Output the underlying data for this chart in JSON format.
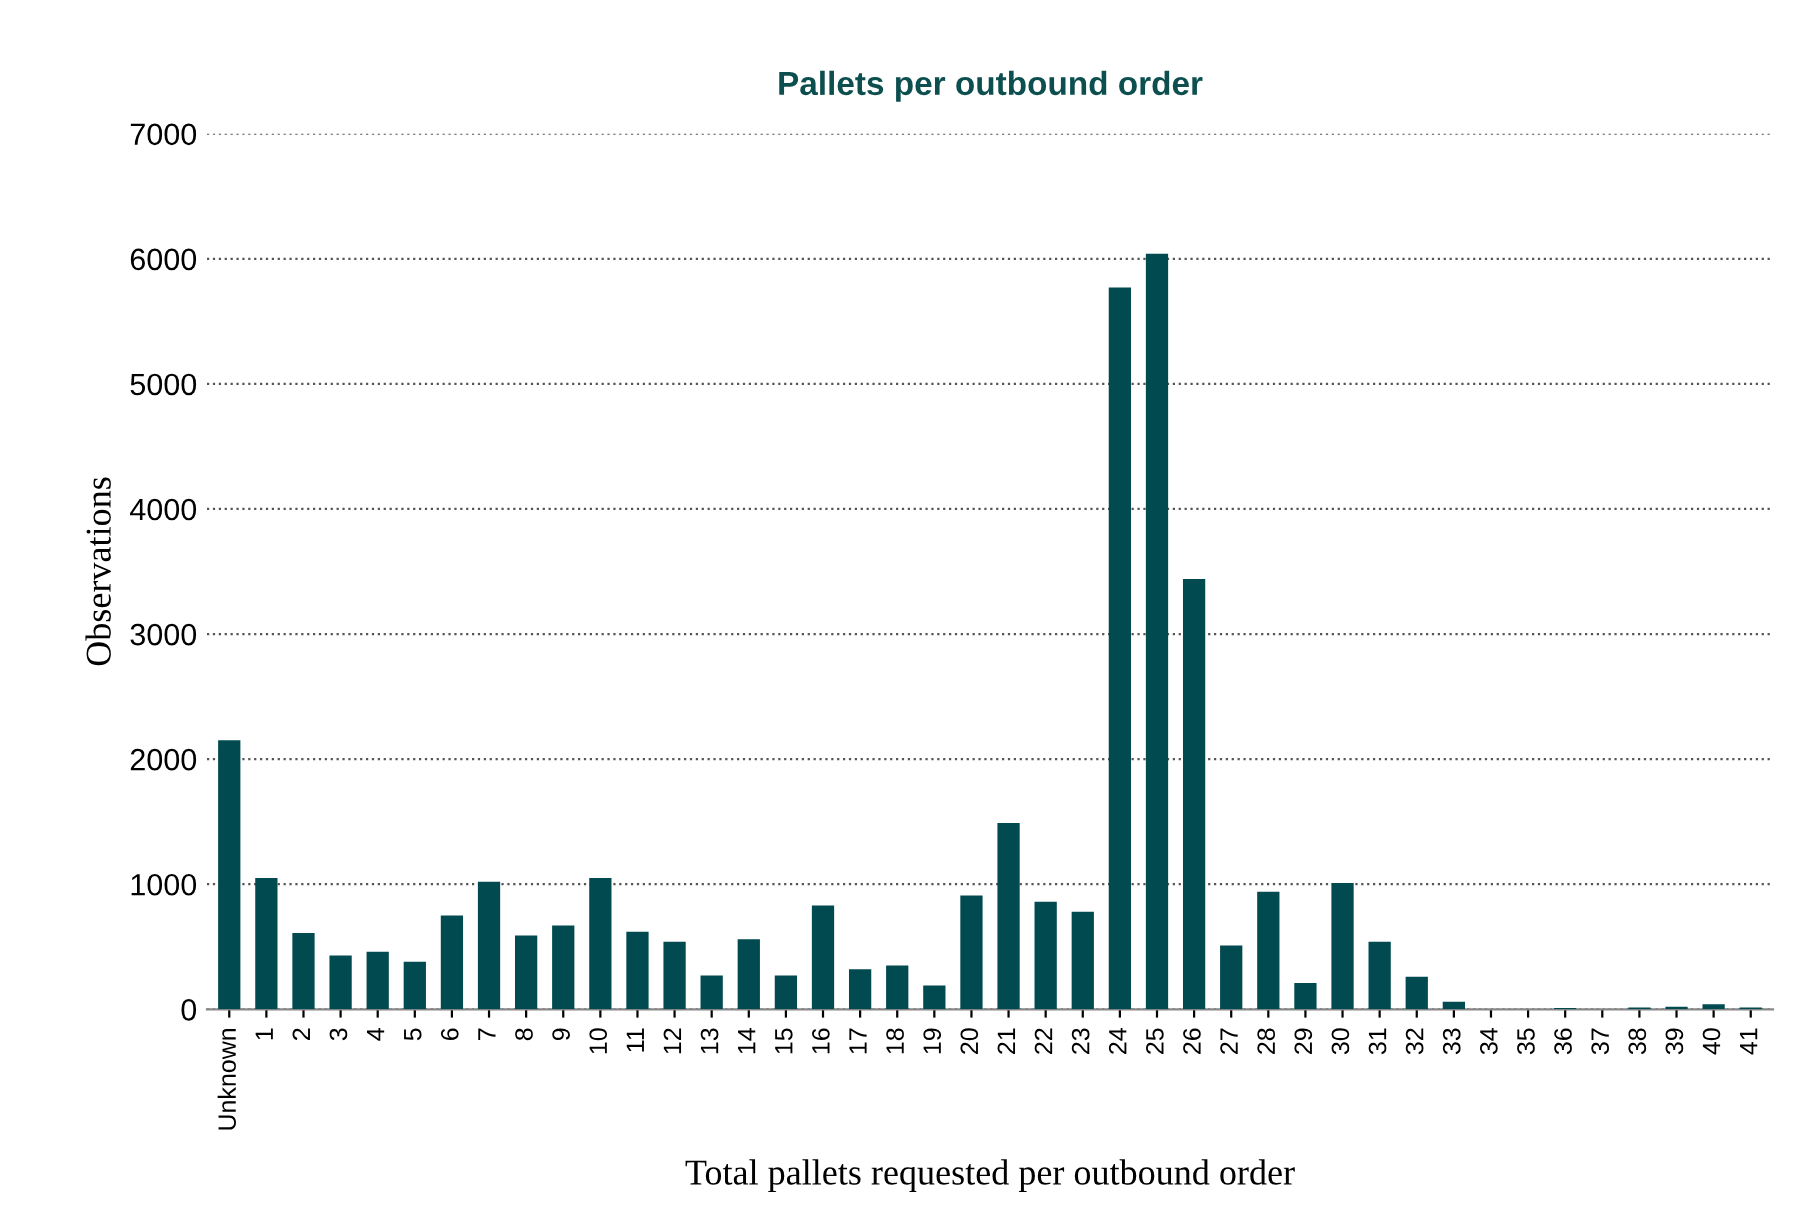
{
  "chart_data": {
    "type": "bar",
    "title": "Pallets per outbound order",
    "xlabel": "Total pallets requested per outbound order",
    "ylabel": "Observations",
    "categories": [
      "Unknown",
      "1",
      "2",
      "3",
      "4",
      "5",
      "6",
      "7",
      "8",
      "9",
      "10",
      "11",
      "12",
      "13",
      "14",
      "15",
      "16",
      "17",
      "18",
      "19",
      "20",
      "21",
      "22",
      "23",
      "24",
      "25",
      "26",
      "27",
      "28",
      "29",
      "30",
      "31",
      "32",
      "33",
      "34",
      "35",
      "36",
      "37",
      "38",
      "39",
      "40",
      "41"
    ],
    "values": [
      2150,
      1050,
      610,
      430,
      460,
      380,
      750,
      1020,
      590,
      670,
      1050,
      620,
      540,
      270,
      560,
      270,
      830,
      320,
      350,
      190,
      910,
      1490,
      860,
      780,
      5770,
      6040,
      3440,
      510,
      940,
      210,
      1010,
      540,
      260,
      60,
      null,
      null,
      10,
      null,
      15,
      20,
      40,
      15
    ],
    "color": "#004a50",
    "ylim": [
      0,
      7000
    ],
    "yticks": [
      0,
      1000,
      2000,
      3000,
      4000,
      5000,
      6000,
      7000
    ],
    "grid": "y"
  }
}
